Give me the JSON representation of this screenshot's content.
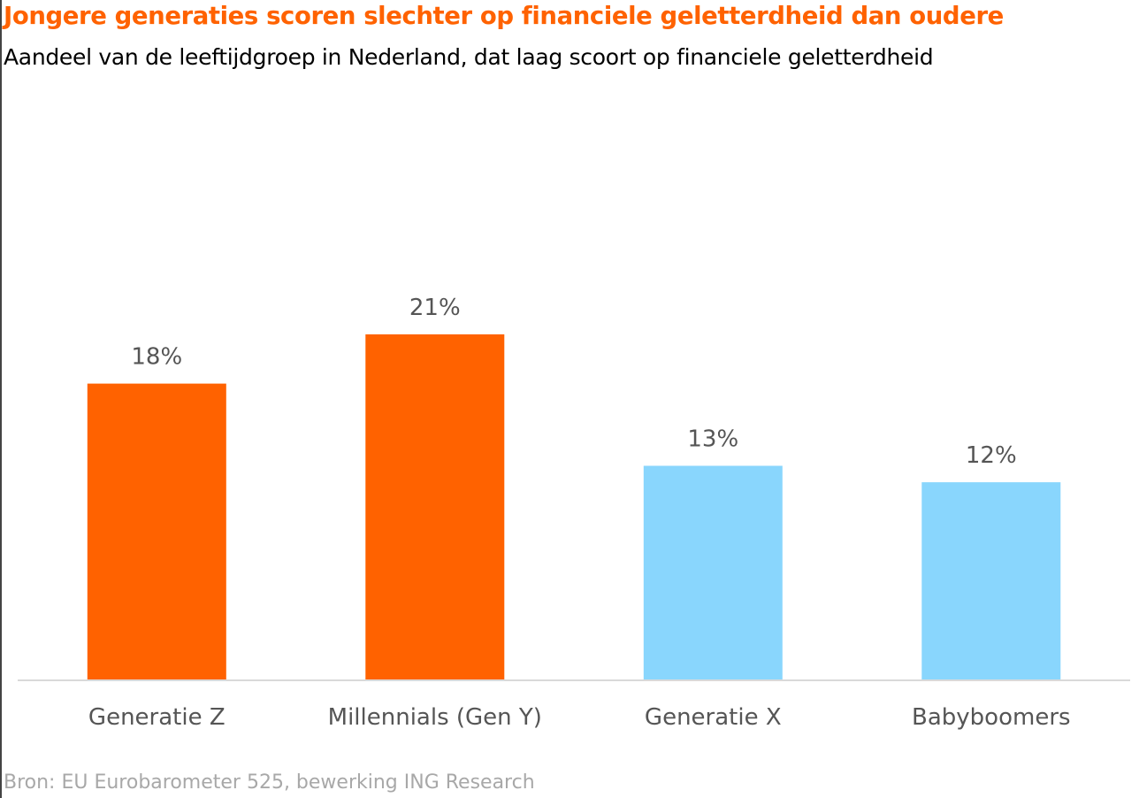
{
  "chart_data": {
    "type": "bar",
    "title": "Jongere generaties scoren slechter op financiele geletterdheid dan oudere",
    "subtitle": "Aandeel van de leeftijdgroep in Nederland, dat laag scoort op financiele geletterdheid",
    "categories": [
      "Generatie Z",
      "Millennials (Gen Y)",
      "Generatie X",
      "Babyboomers"
    ],
    "values": [
      18,
      21,
      13,
      12
    ],
    "data_labels": [
      "18%",
      "21%",
      "13%",
      "12%"
    ],
    "bar_colors": [
      "#ff6200",
      "#ff6200",
      "#89d6fd",
      "#89d6fd"
    ],
    "ylim": [
      0,
      33
    ],
    "grid": false,
    "legend": "none",
    "xlabel": "",
    "ylabel": ""
  },
  "source": "Bron: EU Eurobarometer 525, bewerking ING Research",
  "colors": {
    "accent": "#ff6200",
    "older_generations": "#89d6fd",
    "label_text": "#555555",
    "source_text": "#a8a8a8",
    "axis": "#d9d9d9"
  }
}
